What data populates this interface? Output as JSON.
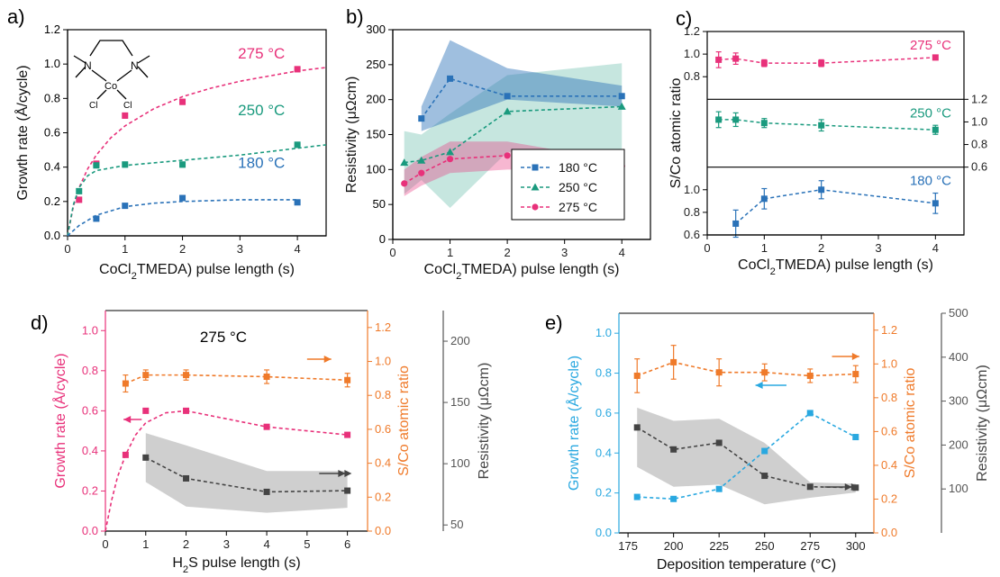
{
  "chart_data": [
    {
      "panel": "a)",
      "type": "scatter",
      "xlabel": "CoCl2(TMEDA) pulse length (s)",
      "ylabel": "Growth rate (Å/cycle)",
      "xlim": [
        0,
        4.5
      ],
      "ylim": [
        0,
        1.2
      ],
      "xticks": [
        "0",
        "1",
        "2",
        "3",
        "4"
      ],
      "yticks": [
        "0.0",
        "0.2",
        "0.4",
        "0.6",
        "0.8",
        "1.0",
        "1.2"
      ],
      "molecule_labels": [
        "N",
        "N",
        "Co",
        "Cl",
        "Cl"
      ],
      "series": [
        {
          "name": "275 °C",
          "color": "#e8317a",
          "x": [
            0.2,
            0.5,
            1,
            2,
            4
          ],
          "y": [
            0.21,
            0.42,
            0.7,
            0.78,
            0.97
          ],
          "err": [
            0.01,
            0.01,
            0.015,
            0.015,
            0.015
          ],
          "fit": {
            "x": [
              0,
              0.1,
              0.2,
              0.35,
              0.5,
              0.75,
              1,
              1.5,
              2,
              2.5,
              3,
              3.5,
              4,
              4.5
            ],
            "y": [
              0,
              0.17,
              0.28,
              0.39,
              0.47,
              0.57,
              0.64,
              0.74,
              0.81,
              0.86,
              0.9,
              0.93,
              0.96,
              0.98
            ]
          }
        },
        {
          "name": "250 °C",
          "color": "#1a9a7e",
          "x": [
            0.2,
            0.5,
            1,
            2,
            4
          ],
          "y": [
            0.26,
            0.41,
            0.415,
            0.415,
            0.53
          ],
          "err": [
            0.01,
            0.01,
            0.015,
            0.015,
            0.015
          ],
          "fit": {
            "x": [
              0,
              0.1,
              0.2,
              0.35,
              0.5,
              1,
              2,
              3,
              4,
              4.5
            ],
            "y": [
              0,
              0.18,
              0.28,
              0.35,
              0.38,
              0.41,
              0.44,
              0.47,
              0.51,
              0.53
            ]
          }
        },
        {
          "name": "180 °C",
          "color": "#2a72b8",
          "x": [
            0.5,
            1,
            2,
            4
          ],
          "y": [
            0.1,
            0.175,
            0.22,
            0.195
          ],
          "err": [
            0.01,
            0.01,
            0.01,
            0.01
          ],
          "fit": {
            "x": [
              0,
              0.2,
              0.5,
              1,
              1.5,
              2,
              3,
              4
            ],
            "y": [
              0,
              0.06,
              0.12,
              0.17,
              0.19,
              0.2,
              0.21,
              0.21
            ]
          }
        }
      ]
    },
    {
      "panel": "b)",
      "type": "line",
      "xlabel": "CoCl2(TMEDA) pulse length (s)",
      "ylabel": "Resistivity (μΩcm)",
      "xlim": [
        0,
        4.5
      ],
      "ylim": [
        0,
        300
      ],
      "xticks": [
        "0",
        "1",
        "2",
        "3",
        "4"
      ],
      "yticks": [
        "0",
        "50",
        "100",
        "150",
        "200",
        "250",
        "300"
      ],
      "series": [
        {
          "name": "180 °C",
          "color": "#2a72b8",
          "x": [
            0.5,
            1,
            2,
            4
          ],
          "y": [
            173,
            230,
            205,
            205
          ],
          "band": {
            "lo": [
              155,
              170,
              200,
              190
            ],
            "hi": [
              190,
              285,
              245,
              220
            ]
          }
        },
        {
          "name": "250 °C",
          "color": "#1a9a7e",
          "x": [
            0.2,
            0.5,
            1,
            2,
            4
          ],
          "y": [
            110,
            113,
            125,
            183,
            190
          ],
          "band": {
            "lo": [
              65,
              85,
              45,
              125,
              127
            ],
            "hi": [
              155,
              150,
              180,
              235,
              252
            ]
          }
        },
        {
          "name": "275 °C",
          "color": "#e8317a",
          "x": [
            0.2,
            0.5,
            1,
            2,
            4
          ],
          "y": [
            80,
            95,
            115,
            120,
            105
          ],
          "band": {
            "lo": [
              62,
              77,
              95,
              100,
              100
            ],
            "hi": [
              100,
              118,
              140,
              140,
              112
            ]
          }
        }
      ]
    },
    {
      "panel": "c)",
      "type": "scatter",
      "xlabel": "CoCl2(TMEDA) pulse length (s)",
      "ylabel": "S/Co atomic ratio",
      "xlim": [
        0,
        4.5
      ],
      "xticks": [
        "0",
        "1",
        "2",
        "3",
        "4"
      ],
      "subpanels": [
        {
          "name": "275 °C",
          "color": "#e8317a",
          "ylim": [
            0.6,
            1.2
          ],
          "yticks": [
            "0.6",
            "0.8",
            "1.0",
            "1.2"
          ],
          "x": [
            0.2,
            0.5,
            1,
            2,
            4
          ],
          "y": [
            0.95,
            0.96,
            0.92,
            0.92,
            0.97
          ],
          "err": [
            0.07,
            0.05,
            0.03,
            0.03,
            0.02
          ]
        },
        {
          "name": "250 °C",
          "color": "#1a9a7e",
          "ylim": [
            0.6,
            1.2
          ],
          "yticks": [
            "0.6",
            "0.8",
            "1.0",
            "1.2"
          ],
          "x": [
            0.2,
            0.5,
            1,
            2,
            4
          ],
          "y": [
            1.02,
            1.02,
            0.99,
            0.97,
            0.93
          ],
          "err": [
            0.07,
            0.06,
            0.04,
            0.05,
            0.04
          ]
        },
        {
          "name": "180 °C",
          "color": "#2a72b8",
          "ylim": [
            0.6,
            1.2
          ],
          "yticks": [
            "0.6",
            "0.8",
            "1.0",
            "1.2"
          ],
          "x": [
            0.5,
            1,
            2,
            4
          ],
          "y": [
            0.7,
            0.92,
            1.0,
            0.88
          ],
          "err": [
            0.12,
            0.09,
            0.08,
            0.09
          ]
        }
      ]
    },
    {
      "panel": "d)",
      "type": "line",
      "title": "275 °C",
      "xlabel": "H2S pulse length (s)",
      "ylabel_left": "Growth rate (Å/cycle)",
      "ylabel_right1": "S/Co atomic ratio",
      "ylabel_right2": "Resistivity (μΩcm)",
      "xlim": [
        0,
        6.5
      ],
      "xticks": [
        "0",
        "1",
        "2",
        "3",
        "4",
        "5",
        "6"
      ],
      "y_left": {
        "lim": [
          0,
          1.1
        ],
        "ticks": [
          "0.0",
          "0.2",
          "0.4",
          "0.6",
          "0.8",
          "1.0"
        ],
        "color": "#e8317a"
      },
      "y_right1": {
        "lim": [
          0,
          1.3
        ],
        "ticks": [
          "0.0",
          "0.2",
          "0.4",
          "0.6",
          "0.8",
          "1.0",
          "1.2"
        ],
        "color": "#ef7a2a"
      },
      "y_right2": {
        "lim": [
          45,
          225
        ],
        "ticks": [
          "50",
          "100",
          "150",
          "200"
        ],
        "color": "#555555"
      },
      "series": [
        {
          "name": "Growth rate",
          "axis": "left",
          "color": "#e8317a",
          "x": [
            0.5,
            1,
            2,
            4,
            6
          ],
          "y": [
            0.38,
            0.6,
            0.6,
            0.52,
            0.48
          ],
          "err": [
            0.01,
            0.01,
            0.01,
            0.01,
            0.01
          ],
          "fit": {
            "x": [
              0,
              0.15,
              0.3,
              0.5,
              0.75,
              1,
              1.5,
              2
            ],
            "y": [
              0,
              0.15,
              0.27,
              0.38,
              0.48,
              0.54,
              0.59,
              0.6
            ]
          }
        },
        {
          "name": "S/Co atomic ratio",
          "axis": "right1",
          "color": "#ef7a2a",
          "x": [
            0.5,
            1,
            2,
            4,
            6
          ],
          "y": [
            0.87,
            0.92,
            0.92,
            0.91,
            0.89
          ],
          "err": [
            0.05,
            0.03,
            0.03,
            0.04,
            0.04
          ]
        },
        {
          "name": "Resistivity",
          "axis": "right2",
          "color": "#444444",
          "x": [
            1,
            2,
            4,
            6
          ],
          "y": [
            105,
            88,
            77,
            78
          ],
          "band": {
            "lo": [
              85,
              65,
              60,
              64
            ],
            "hi": [
              125,
              115,
              94,
              94
            ]
          }
        }
      ]
    },
    {
      "panel": "e)",
      "type": "line",
      "xlabel": "Deposition temperature (°C)",
      "ylabel_left": "Growth rate (Å/cycle)",
      "ylabel_right1": "S/Co atomic ratio",
      "ylabel_right2": "Resistivity (μΩcm)",
      "xlim": [
        170,
        310
      ],
      "xticks": [
        "175",
        "200",
        "225",
        "250",
        "275",
        "300"
      ],
      "y_left": {
        "lim": [
          0,
          1.1
        ],
        "ticks": [
          "0.0",
          "0.2",
          "0.4",
          "0.6",
          "0.8",
          "1.0"
        ],
        "color": "#29a8e0"
      },
      "y_right1": {
        "lim": [
          0,
          1.3
        ],
        "ticks": [
          "0.0",
          "0.2",
          "0.4",
          "0.6",
          "0.8",
          "1.0",
          "1.2"
        ],
        "color": "#ef7a2a"
      },
      "y_right2": {
        "lim": [
          0,
          500
        ],
        "ticks": [
          "100",
          "200",
          "300",
          "400",
          "500"
        ],
        "color": "#555555"
      },
      "series": [
        {
          "name": "Growth rate",
          "axis": "left",
          "color": "#29a8e0",
          "x": [
            180,
            200,
            225,
            250,
            275,
            300
          ],
          "y": [
            0.18,
            0.17,
            0.22,
            0.41,
            0.6,
            0.48
          ]
        },
        {
          "name": "S/Co atomic ratio",
          "axis": "right1",
          "color": "#ef7a2a",
          "x": [
            180,
            200,
            225,
            250,
            275,
            300
          ],
          "y": [
            0.93,
            1.01,
            0.95,
            0.95,
            0.93,
            0.94
          ],
          "err": [
            0.1,
            0.1,
            0.08,
            0.05,
            0.04,
            0.05
          ]
        },
        {
          "name": "Resistivity",
          "axis": "right2",
          "color": "#444444",
          "x": [
            180,
            200,
            225,
            250,
            275,
            300
          ],
          "y": [
            240,
            190,
            205,
            130,
            105,
            103
          ],
          "band": {
            "lo": [
              150,
              105,
              110,
              65,
              80,
              92
            ],
            "hi": [
              285,
              255,
              260,
              205,
              115,
              112
            ]
          }
        }
      ]
    }
  ]
}
